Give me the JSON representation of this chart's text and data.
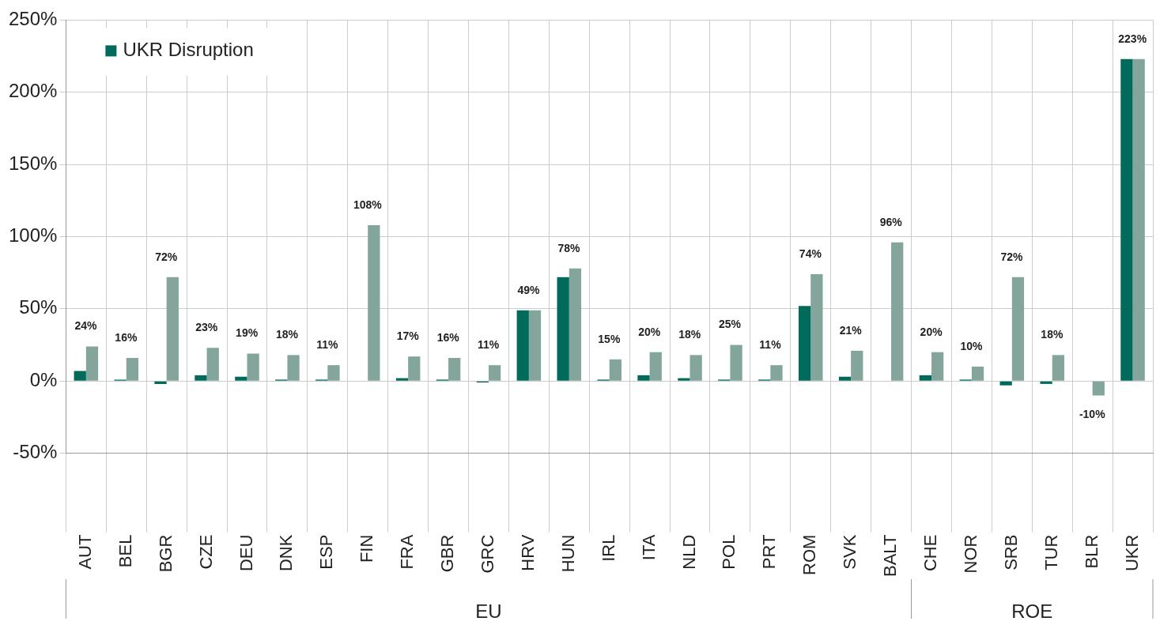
{
  "chart_data": {
    "type": "bar",
    "categories": [
      "AUT",
      "BEL",
      "BGR",
      "CZE",
      "DEU",
      "DNK",
      "ESP",
      "FIN",
      "FRA",
      "GBR",
      "GRC",
      "HRV",
      "HUN",
      "IRL",
      "ITA",
      "NLD",
      "POL",
      "PRT",
      "ROM",
      "SVK",
      "BALT",
      "CHE",
      "NOR",
      "SRB",
      "TUR",
      "BLR",
      "UKR"
    ],
    "series": [
      {
        "name": "UKR Disruption",
        "color": "#006b5a",
        "values": [
          7,
          1,
          -2,
          4,
          3,
          1,
          1,
          0,
          2,
          1,
          -1,
          49,
          72,
          1,
          4,
          2,
          1,
          1,
          52,
          3,
          0,
          4,
          1,
          -3,
          -2,
          0,
          223
        ]
      },
      {
        "color": "#84a59c",
        "values": [
          24,
          16,
          72,
          23,
          19,
          18,
          11,
          108,
          17,
          16,
          11,
          49,
          78,
          15,
          20,
          18,
          25,
          11,
          74,
          21,
          96,
          20,
          10,
          72,
          18,
          -10,
          223
        ],
        "value_labels": [
          "24%",
          "16%",
          "72%",
          "23%",
          "19%",
          "18%",
          "11%",
          "108%",
          "17%",
          "16%",
          "11%",
          "49%",
          "78%",
          "15%",
          "20%",
          "18%",
          "25%",
          "11%",
          "74%",
          "21%",
          "96%",
          "20%",
          "10%",
          "72%",
          "18%",
          "-10%",
          "223%"
        ]
      }
    ],
    "ylim": [
      -50,
      250
    ],
    "yticks": [
      {
        "value": -50,
        "label": "-50%"
      },
      {
        "value": 0,
        "label": "0%"
      },
      {
        "value": 50,
        "label": "50%"
      },
      {
        "value": 100,
        "label": "100%"
      },
      {
        "value": 150,
        "label": "150%"
      },
      {
        "value": 200,
        "label": "200%"
      },
      {
        "value": 250,
        "label": "250%"
      }
    ],
    "grid": true,
    "legend": "top left",
    "annotations": [
      "EU",
      "ROE"
    ]
  }
}
